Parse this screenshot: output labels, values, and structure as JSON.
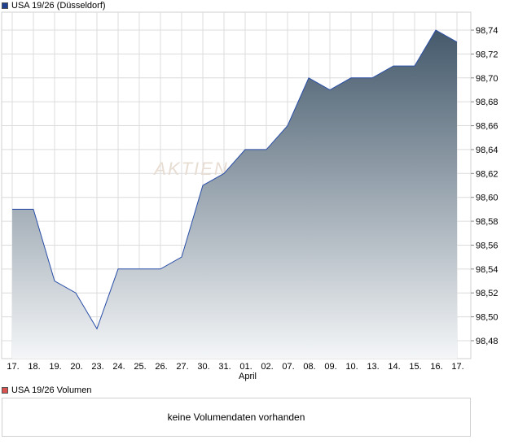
{
  "legend": {
    "price_label": "USA 19/26 (Düsseldorf)",
    "price_color": "#1f3f8f",
    "volume_label": "USA 19/26 Volumen",
    "volume_color": "#d9534f"
  },
  "watermark": "AKTIEN",
  "volume_message": "keine Volumendaten vorhanden",
  "chart_data": {
    "type": "area",
    "title": "",
    "xlabel": "",
    "ylabel": "",
    "month_label": "April",
    "categories": [
      "17.",
      "18.",
      "19.",
      "20.",
      "23.",
      "24.",
      "25.",
      "26.",
      "27.",
      "30.",
      "31.",
      "01.",
      "02.",
      "07.",
      "08.",
      "09.",
      "10.",
      "13.",
      "14.",
      "15.",
      "16.",
      "17."
    ],
    "values": [
      98.59,
      98.59,
      98.53,
      98.52,
      98.49,
      98.54,
      98.54,
      98.54,
      98.55,
      98.61,
      98.62,
      98.64,
      98.64,
      98.66,
      98.7,
      98.69,
      98.7,
      98.7,
      98.71,
      98.71,
      98.74,
      98.73
    ],
    "ylim": [
      98.465,
      98.755
    ],
    "yticks": [
      "98,48",
      "98,50",
      "98,52",
      "98,54",
      "98,56",
      "98,58",
      "98,60",
      "98,62",
      "98,64",
      "98,66",
      "98,68",
      "98,70",
      "98,72",
      "98,74"
    ],
    "grid": true,
    "line_color": "#2a4fa8",
    "fill_top_color": "#44596b",
    "fill_bottom_color": "#f4f6f8"
  }
}
